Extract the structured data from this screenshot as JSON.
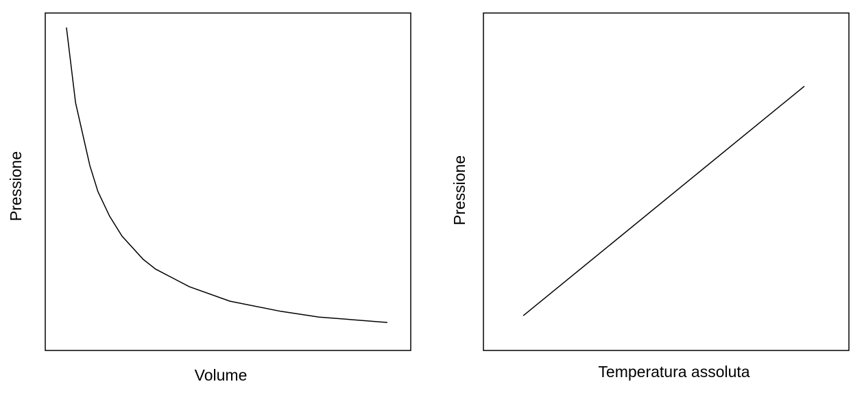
{
  "chart_data": [
    {
      "type": "line",
      "xlabel": "Volume",
      "ylabel": "Pressione",
      "x": [
        0.58,
        0.83,
        1.22,
        1.44,
        1.76,
        2.1,
        2.68,
        3.02,
        3.94,
        5.05,
        6.44,
        7.49,
        9.36
      ],
      "values": [
        9.57,
        7.34,
        5.48,
        4.71,
        3.98,
        3.39,
        2.7,
        2.41,
        1.89,
        1.46,
        1.16,
        0.99,
        0.83
      ],
      "color": "#000000",
      "xlim": [
        0,
        10
      ],
      "ylim": [
        0,
        10
      ]
    },
    {
      "type": "line",
      "xlabel": "Temperatura assoluta",
      "ylabel": "Pressione",
      "x": [
        1.09,
        8.78
      ],
      "values": [
        1.03,
        7.83
      ],
      "color": "#000000",
      "xlim": [
        0,
        10
      ],
      "ylim": [
        0,
        10
      ]
    }
  ]
}
